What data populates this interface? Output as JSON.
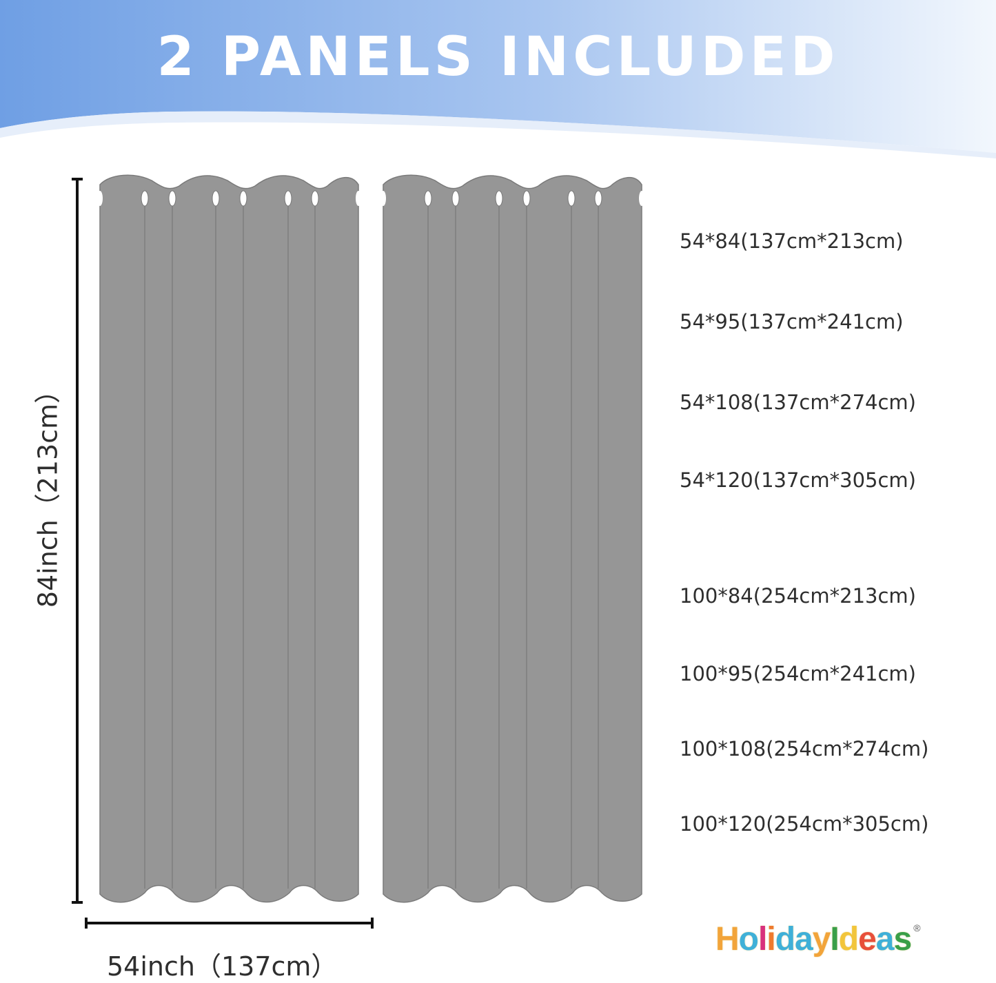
{
  "header": {
    "title": "2 PANELS INCLUDED",
    "gradient_start": "#6f9fe4",
    "gradient_end": "#ffffff"
  },
  "panel_color": "#969696",
  "panel_count": 2,
  "dimensions": {
    "height_label": "84inch（213cm）",
    "width_label": "54inch（137cm）"
  },
  "sizes": [
    "54*84(137cm*213cm)",
    "54*95(137cm*241cm)",
    "54*108(137cm*274cm)",
    "54*120(137cm*305cm)",
    "100*84(254cm*213cm)",
    "100*95(254cm*241cm)",
    "100*108(254cm*274cm)",
    "100*120(254cm*305cm)"
  ],
  "logo": {
    "text": "HolidayIdeas",
    "registered": "®",
    "colors": [
      "#f2a43a",
      "#3fb0d8",
      "#d8317d",
      "#ee7a2e",
      "#3fb0d8",
      "#3fb0d8",
      "#f2a43a",
      "#3a9f48",
      "#f2c53a",
      "#e8503a",
      "#3fb0d8",
      "#3a9f48"
    ]
  }
}
